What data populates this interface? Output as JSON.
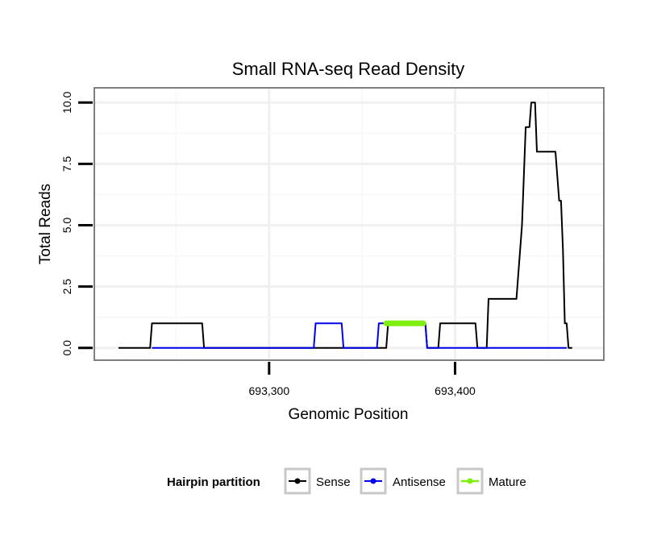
{
  "chart_data": {
    "type": "line",
    "title": "Small RNA-seq Read Density",
    "xlabel": "Genomic Position",
    "ylabel": "Total Reads",
    "xlim": [
      693206,
      693480
    ],
    "ylim": [
      -0.5,
      10.6
    ],
    "x_ticks": [
      693300,
      693400
    ],
    "x_tick_labels": [
      "693,300",
      "693,400"
    ],
    "y_ticks": [
      0,
      2.5,
      5,
      7.5,
      10
    ],
    "y_tick_labels": [
      "0.0",
      "2.5",
      "5.0",
      "7.5",
      "10.0"
    ],
    "grid": true,
    "legend": {
      "title": "Hairpin partition",
      "position": "bottom"
    },
    "series": [
      {
        "name": "Sense",
        "color": "#000000",
        "x": [
          693219,
          693236,
          693237,
          693264,
          693265,
          693363,
          693364,
          693384,
          693385,
          693391,
          693392,
          693407,
          693408,
          693411,
          693412,
          693417,
          693418,
          693433,
          693434,
          693435,
          693436,
          693437,
          693438,
          693439,
          693440,
          693441,
          693442,
          693443,
          693444,
          693445,
          693446,
          693447,
          693448,
          693449,
          693450,
          693451,
          693452,
          693453,
          693454,
          693455,
          693456,
          693457,
          693458,
          693459,
          693460,
          693461,
          693462,
          693463
        ],
        "values": [
          0,
          0,
          1,
          1,
          0,
          0,
          1,
          1,
          0,
          0,
          1,
          1,
          1,
          1,
          0,
          0,
          2,
          2,
          3,
          4,
          5,
          7,
          9,
          9,
          9,
          10,
          10,
          10,
          8,
          8,
          8,
          8,
          8,
          8,
          8,
          8,
          8,
          8,
          8,
          7,
          6,
          6,
          4,
          1,
          1,
          0,
          0,
          0
        ]
      },
      {
        "name": "Antisense",
        "color": "#0000ee",
        "x": [
          693237,
          693324,
          693325,
          693339,
          693340,
          693358,
          693359,
          693363,
          693364,
          693383,
          693384,
          693385,
          693390,
          693460
        ],
        "values": [
          0,
          0,
          1,
          1,
          0,
          0,
          1,
          1,
          1,
          1,
          1,
          0,
          0,
          0
        ]
      },
      {
        "name": "Mature",
        "color": "#7fef0f",
        "x": [
          693363,
          693383
        ],
        "values": [
          1,
          1
        ]
      }
    ]
  }
}
